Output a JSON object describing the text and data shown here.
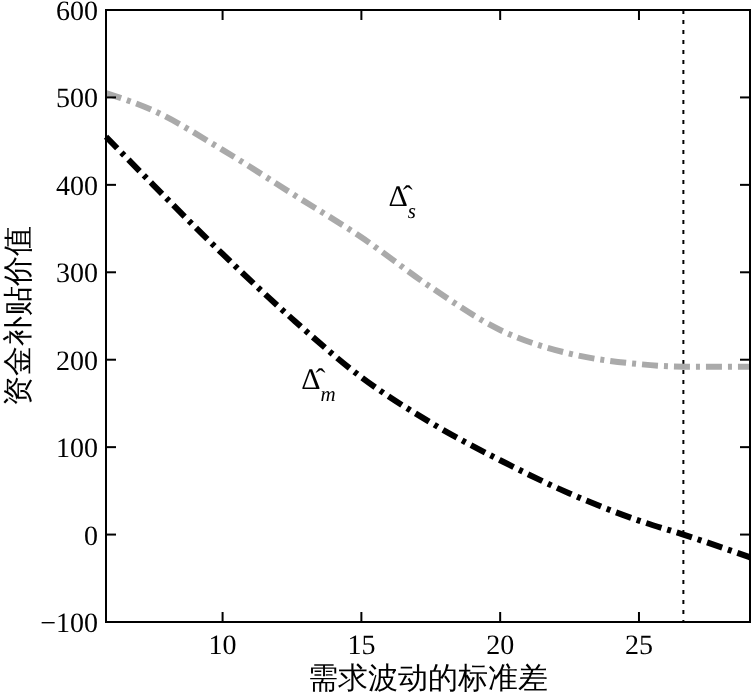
{
  "chart_data": {
    "type": "line",
    "xlabel": "需求波动的标准差",
    "ylabel": "资金补贴价值",
    "xlim": [
      5.8,
      29
    ],
    "xticks": [
      10,
      15,
      20,
      25
    ],
    "ylim": [
      -100,
      600
    ],
    "yticks": [
      -100,
      0,
      100,
      200,
      300,
      400,
      500,
      600
    ],
    "grid": false,
    "marker": "none",
    "line_style": "dashdot",
    "series": [
      {
        "color": "#aaaaaa",
        "x": [
          5.8,
          7.5,
          10,
          12.5,
          15,
          17.5,
          20,
          22.5,
          25,
          26.6,
          29
        ],
        "values": [
          505,
          485,
          440,
          390,
          340,
          283,
          234,
          207,
          195,
          192,
          192
        ]
      },
      {
        "color": "#000000",
        "x": [
          5.8,
          7.5,
          10,
          12.5,
          15,
          17.5,
          20,
          22.5,
          25,
          26.6,
          29
        ],
        "values": [
          455,
          400,
          321,
          247,
          180,
          128,
          85,
          47,
          16,
          0,
          -26
        ]
      }
    ],
    "ref_lines": [
      {
        "axis": "x",
        "value": 26.6,
        "label": null,
        "color": "#000000",
        "line_style": "dotted"
      }
    ],
    "annotations": [
      "Δ̂$_{s}$",
      "Δ̂$_{m}$"
    ]
  }
}
